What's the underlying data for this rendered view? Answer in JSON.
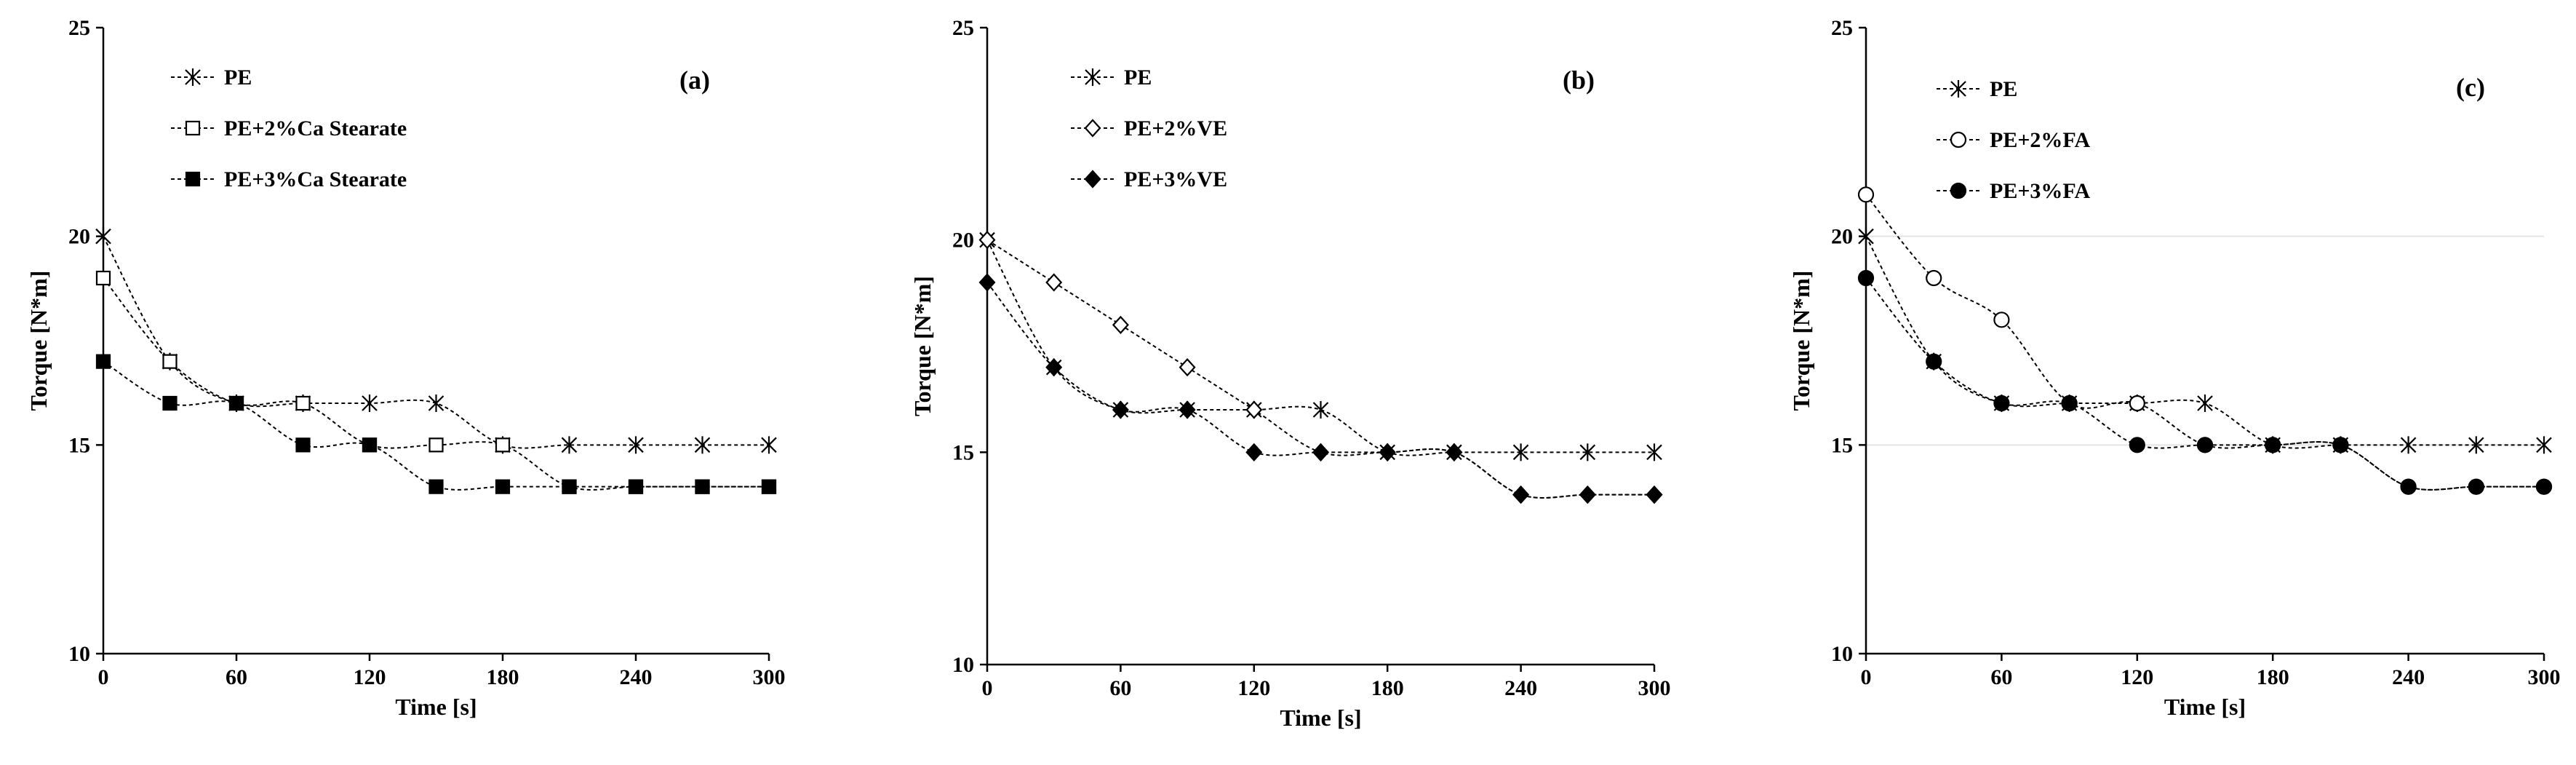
{
  "chart_data": [
    {
      "type": "line",
      "panel_label": "(a)",
      "xlabel": "Time [s]",
      "ylabel": "Torque [N*m]",
      "xlim": [
        0,
        300
      ],
      "ylim": [
        10,
        25
      ],
      "xticks": [
        0,
        60,
        120,
        180,
        240,
        300
      ],
      "yticks": [
        10,
        15,
        20,
        25
      ],
      "grid": false,
      "legend_position": "top-left",
      "x": [
        0,
        30,
        60,
        90,
        120,
        150,
        180,
        210,
        240,
        270,
        300
      ],
      "series": [
        {
          "name": "PE",
          "marker": "asterisk",
          "values": [
            20,
            17,
            16,
            16,
            16,
            16,
            15,
            15,
            15,
            15,
            15
          ]
        },
        {
          "name": "PE+2%Ca Stearate",
          "marker": "open-square",
          "values": [
            19,
            17,
            16,
            16,
            15,
            15,
            15,
            14,
            14,
            14,
            14
          ]
        },
        {
          "name": "PE+3%Ca Stearate",
          "marker": "filled-square",
          "values": [
            17,
            16,
            16,
            15,
            15,
            14,
            14,
            14,
            14,
            14,
            14
          ]
        }
      ]
    },
    {
      "type": "line",
      "panel_label": "(b)",
      "xlabel": "Time [s]",
      "ylabel": "Torque [N*m]",
      "xlim": [
        0,
        300
      ],
      "ylim": [
        10,
        25
      ],
      "xticks": [
        0,
        60,
        120,
        180,
        240,
        300
      ],
      "yticks": [
        10,
        15,
        20,
        25
      ],
      "grid": false,
      "legend_position": "top-left",
      "x": [
        0,
        30,
        60,
        90,
        120,
        150,
        180,
        210,
        240,
        270,
        300
      ],
      "series": [
        {
          "name": "PE",
          "marker": "asterisk",
          "values": [
            20,
            17,
            16,
            16,
            16,
            16,
            15,
            15,
            15,
            15,
            15
          ]
        },
        {
          "name": "PE+2%VE",
          "marker": "open-diamond",
          "values": [
            20,
            19,
            18,
            17,
            16,
            15,
            15,
            15,
            14,
            14,
            14
          ]
        },
        {
          "name": "PE+3%VE",
          "marker": "filled-diamond",
          "values": [
            19,
            17,
            16,
            16,
            15,
            15,
            15,
            15,
            14,
            14,
            14
          ]
        }
      ]
    },
    {
      "type": "line",
      "panel_label": "(c)",
      "xlabel": "Time [s]",
      "ylabel": "Torque [N*m]",
      "xlim": [
        0,
        300
      ],
      "ylim": [
        10,
        25
      ],
      "xticks": [
        0,
        60,
        120,
        180,
        240,
        300
      ],
      "yticks": [
        10,
        15,
        20,
        25
      ],
      "grid": true,
      "legend_position": "top-left",
      "x": [
        0,
        30,
        60,
        90,
        120,
        150,
        180,
        210,
        240,
        270,
        300
      ],
      "series": [
        {
          "name": "PE",
          "marker": "asterisk",
          "values": [
            20,
            17,
            16,
            16,
            16,
            16,
            15,
            15,
            15,
            15,
            15
          ]
        },
        {
          "name": "PE+2%FA",
          "marker": "open-circle",
          "values": [
            21,
            19,
            18,
            16,
            16,
            15,
            15,
            15,
            14,
            14,
            14
          ]
        },
        {
          "name": "PE+3%FA",
          "marker": "filled-circle",
          "values": [
            19,
            17,
            16,
            16,
            15,
            15,
            15,
            15,
            14,
            14,
            14
          ]
        }
      ]
    }
  ]
}
